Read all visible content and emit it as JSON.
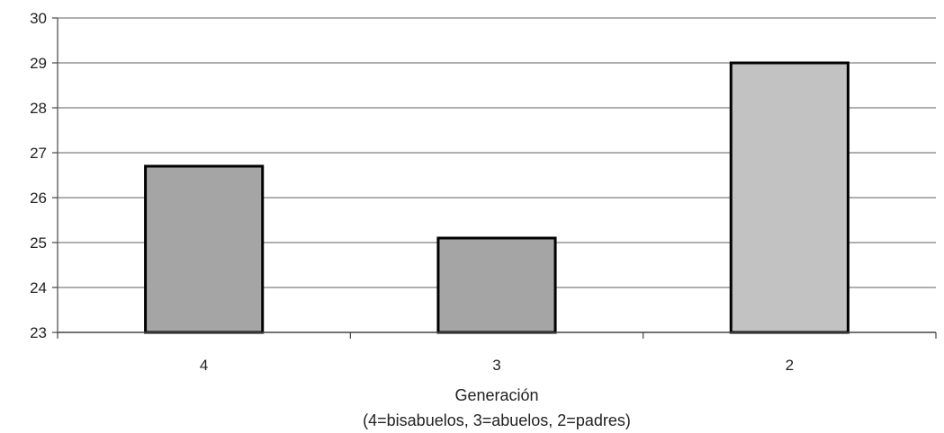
{
  "chart_data": {
    "type": "bar",
    "categories": [
      "4",
      "3",
      "2"
    ],
    "values": [
      26.7,
      25.1,
      29.0
    ],
    "title": "",
    "xlabel": "Generación",
    "xlabel_sub": "(4=bisabuelos, 3=abuelos, 2=padres)",
    "ylabel": "",
    "ylim": [
      23,
      30
    ],
    "yticks": [
      23,
      24,
      25,
      26,
      27,
      28,
      29,
      30
    ],
    "grid": true,
    "legend": "none",
    "bar_colors": [
      "#a5a5a5",
      "#a5a5a5",
      "#c2c2c2"
    ],
    "bar_border_color": "#000000",
    "gridline_color": "#7f7f7f"
  }
}
